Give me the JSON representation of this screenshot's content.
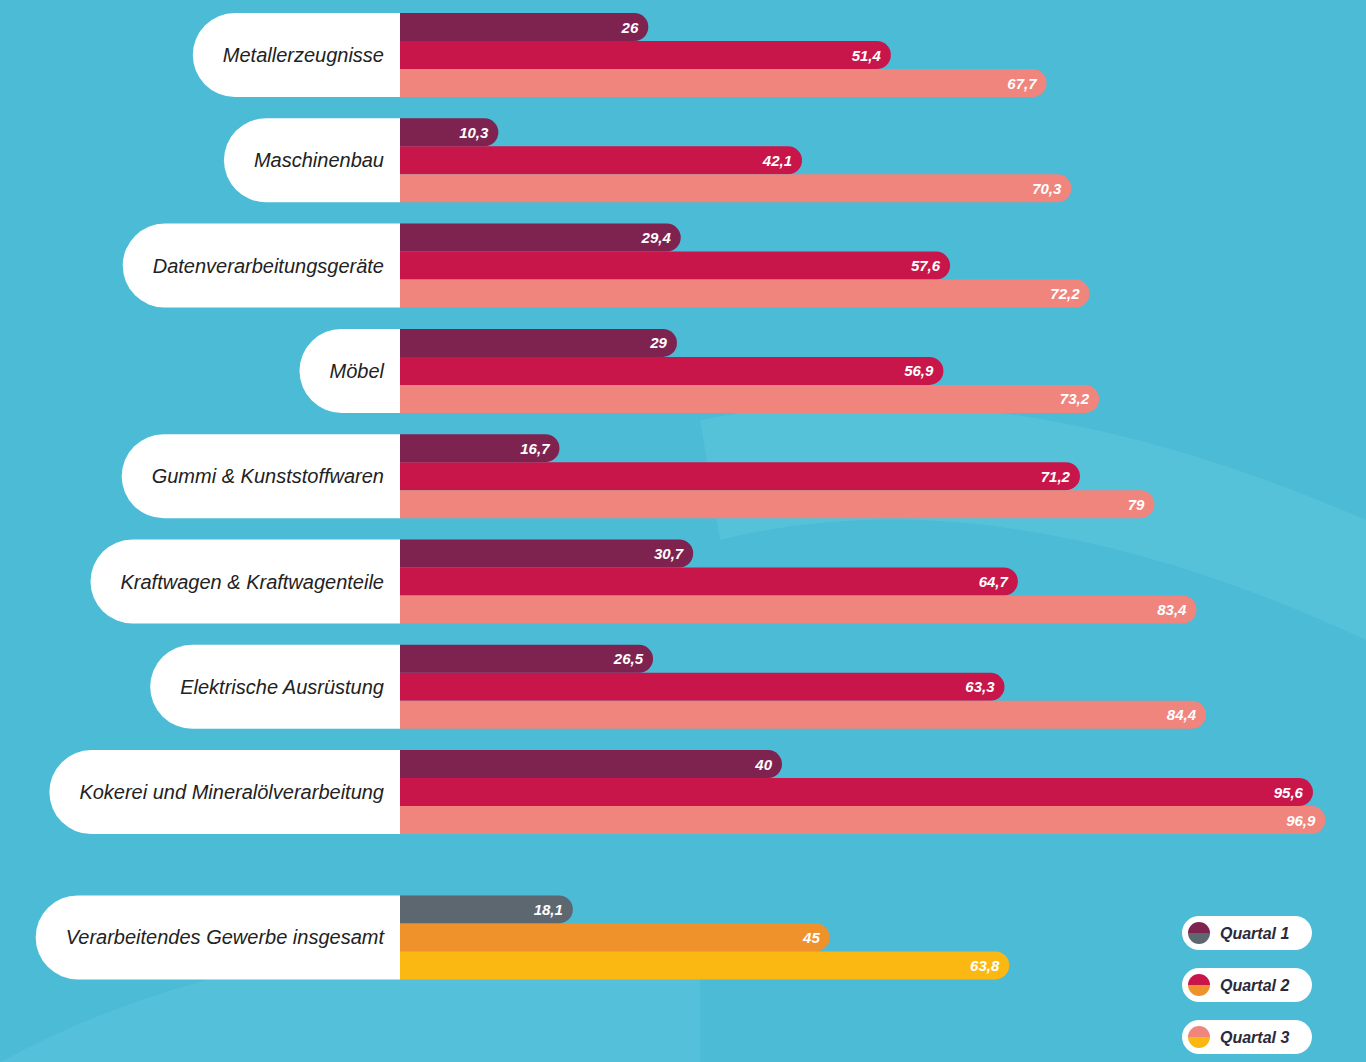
{
  "chart_data": {
    "type": "bar",
    "orientation": "horizontal",
    "categories": [
      "Metallerzeugnisse",
      "Maschinenbau",
      "Datenverarbeitungsgeräte",
      "Möbel",
      "Gummi & Kunststoffwaren",
      "Kraftwagen & Kraftwagenteile",
      "Elektrische Ausrüstung",
      "Kokerei und Mineralölverarbeitung",
      "Verarbeitendes Gewerbe insgesamt"
    ],
    "series": [
      {
        "name": "Quartal 1",
        "colors": [
          "#7e2350",
          "#7e2350",
          "#7e2350",
          "#7e2350",
          "#7e2350",
          "#7e2350",
          "#7e2350",
          "#7e2350",
          "#5d6770"
        ],
        "values": [
          26,
          10.3,
          29.4,
          29,
          16.7,
          30.7,
          26.5,
          40,
          18.1
        ],
        "value_labels": [
          "26",
          "10,3",
          "29,4",
          "29",
          "16,7",
          "30,7",
          "26,5",
          "40",
          "18,1"
        ]
      },
      {
        "name": "Quartal 2",
        "colors": [
          "#c8164a",
          "#c8164a",
          "#c8164a",
          "#c8164a",
          "#c8164a",
          "#c8164a",
          "#c8164a",
          "#c8164a",
          "#f0922b"
        ],
        "values": [
          51.4,
          42.1,
          57.6,
          56.9,
          71.2,
          64.7,
          63.3,
          95.6,
          45
        ],
        "value_labels": [
          "51,4",
          "42,1",
          "57,6",
          "56,9",
          "71,2",
          "64,7",
          "63,3",
          "95,6",
          "45"
        ]
      },
      {
        "name": "Quartal 3",
        "colors": [
          "#f0857e",
          "#f0857e",
          "#f0857e",
          "#f0857e",
          "#f0857e",
          "#f0857e",
          "#f0857e",
          "#f0857e",
          "#fbb813"
        ],
        "values": [
          67.7,
          70.3,
          72.2,
          73.2,
          79,
          83.4,
          84.4,
          96.9,
          63.8
        ],
        "value_labels": [
          "67,7",
          "70,3",
          "72,2",
          "73,2",
          "79",
          "83,4",
          "84,4",
          "96,9",
          "63,8"
        ]
      }
    ],
    "xlim": [
      0,
      100
    ],
    "data_labels": true,
    "tick_labels": false,
    "legend": "bottom-right"
  }
}
